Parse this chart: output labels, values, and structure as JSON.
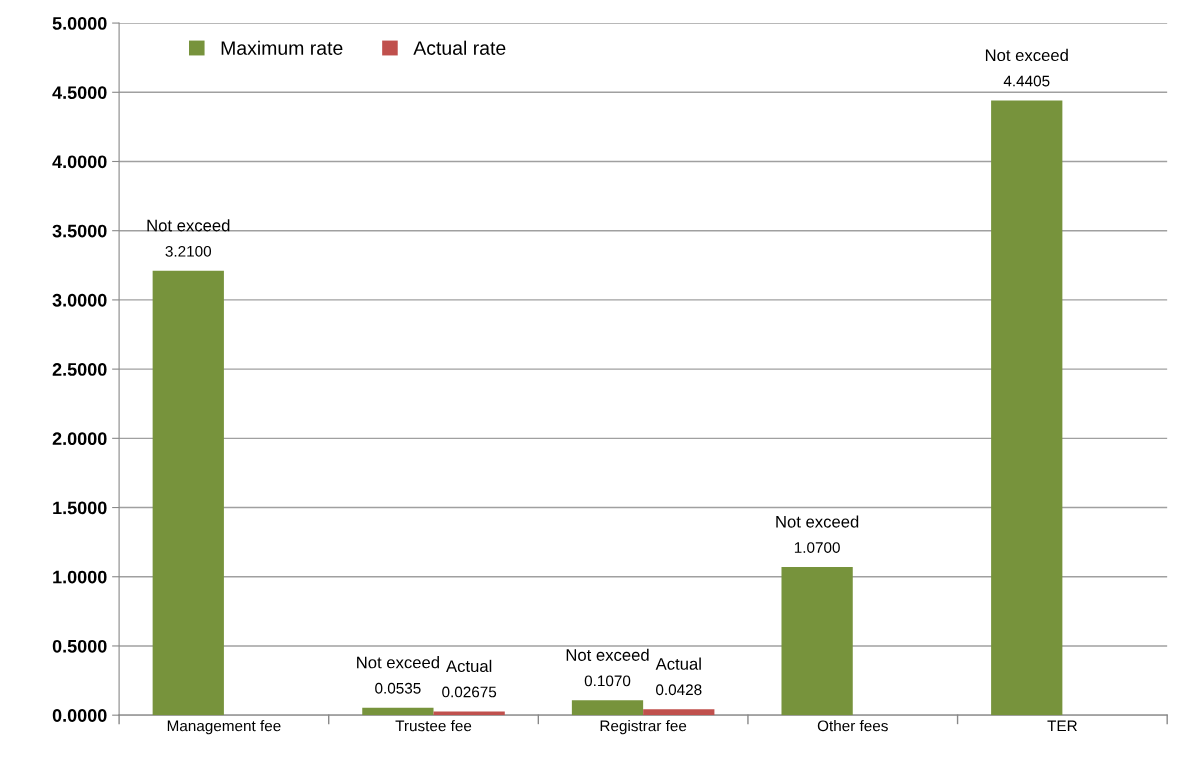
{
  "chart_data": {
    "type": "bar",
    "categories": [
      "Management fee",
      "Trustee fee",
      "Registrar fee",
      "Other fees",
      "TER"
    ],
    "series": [
      {
        "name": "Maximum rate",
        "color": "#77933c",
        "values": [
          3.21,
          0.0535,
          0.107,
          1.07,
          4.4405
        ],
        "value_labels": [
          "3.2100",
          "0.0535",
          "0.1070",
          "1.0700",
          "4.4405"
        ]
      },
      {
        "name": "Actual rate",
        "color": "#c0504d",
        "values": [
          null,
          0.02675,
          0.0428,
          null,
          null
        ],
        "value_labels": [
          null,
          "0.02675",
          "0.0428",
          null,
          null
        ]
      }
    ],
    "ylim": [
      0,
      5
    ],
    "yticks": [
      {
        "value": 0,
        "label": "0.0000"
      },
      {
        "value": 0.5,
        "label": "0.5000"
      },
      {
        "value": 1,
        "label": "1.0000"
      },
      {
        "value": 1.5,
        "label": "1.5000"
      },
      {
        "value": 2,
        "label": "2.0000"
      },
      {
        "value": 2.5,
        "label": "2.5000"
      },
      {
        "value": 3,
        "label": "3.0000"
      },
      {
        "value": 3.5,
        "label": "3.5000"
      },
      {
        "value": 4,
        "label": "4.0000"
      },
      {
        "value": 4.5,
        "label": "4.5000"
      },
      {
        "value": 5,
        "label": "5.0000"
      }
    ],
    "annotations": [
      {
        "text": "Not exceed",
        "x": "Management fee",
        "y": 3.21
      },
      {
        "text": "Not exceed",
        "x": "Trustee fee",
        "y": 0.0535
      },
      {
        "text": "Actual",
        "x": "Trustee fee",
        "y": 0.02675
      },
      {
        "text": "Not exceed",
        "x": "Registrar fee",
        "y": 0.107
      },
      {
        "text": "Actual",
        "x": "Registrar fee",
        "y": 0.0428
      },
      {
        "text": "Not exceed",
        "x": "Other fees",
        "y": 1.07
      },
      {
        "text": "Not exceed",
        "x": "TER",
        "y": 4.4405
      }
    ],
    "grid": "y",
    "legend": "top left"
  }
}
